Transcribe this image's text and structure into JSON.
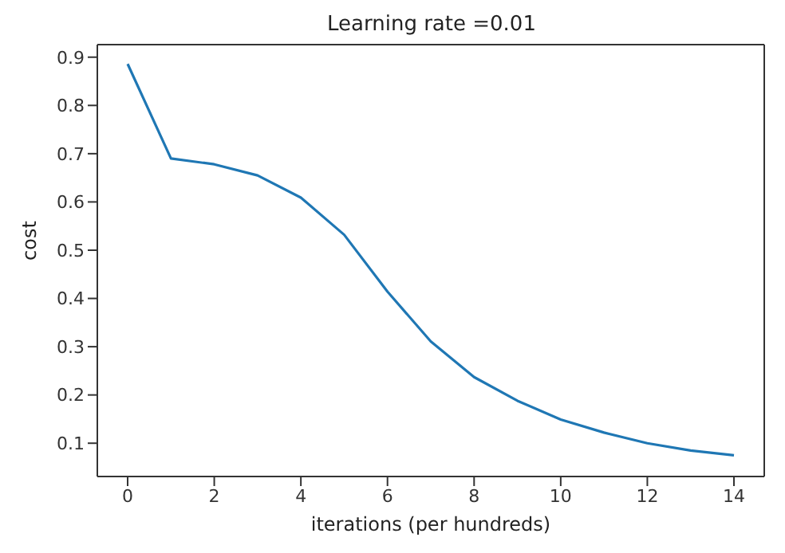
{
  "chart_data": {
    "type": "line",
    "title": "Learning rate =0.01",
    "xlabel": "iterations (per hundreds)",
    "ylabel": "cost",
    "x": [
      0,
      1,
      2,
      3,
      4,
      5,
      6,
      7,
      8,
      9,
      10,
      11,
      12,
      13,
      14
    ],
    "series": [
      {
        "color": "#1f77b4",
        "values": [
          0.886,
          0.69,
          0.678,
          0.655,
          0.609,
          0.532,
          0.414,
          0.311,
          0.237,
          0.188,
          0.149,
          0.122,
          0.1,
          0.085,
          0.075
        ]
      }
    ],
    "xlim": [
      -0.7,
      14.7
    ],
    "xticks": [
      0,
      2,
      4,
      6,
      8,
      10,
      12,
      14
    ],
    "ylim": [
      0.031,
      0.926
    ],
    "yticks": [
      0.1,
      0.2,
      0.3,
      0.4,
      0.5,
      0.6,
      0.7,
      0.8,
      0.9
    ],
    "grid": false,
    "legend": false,
    "marker": "none",
    "line_style": "solid"
  }
}
